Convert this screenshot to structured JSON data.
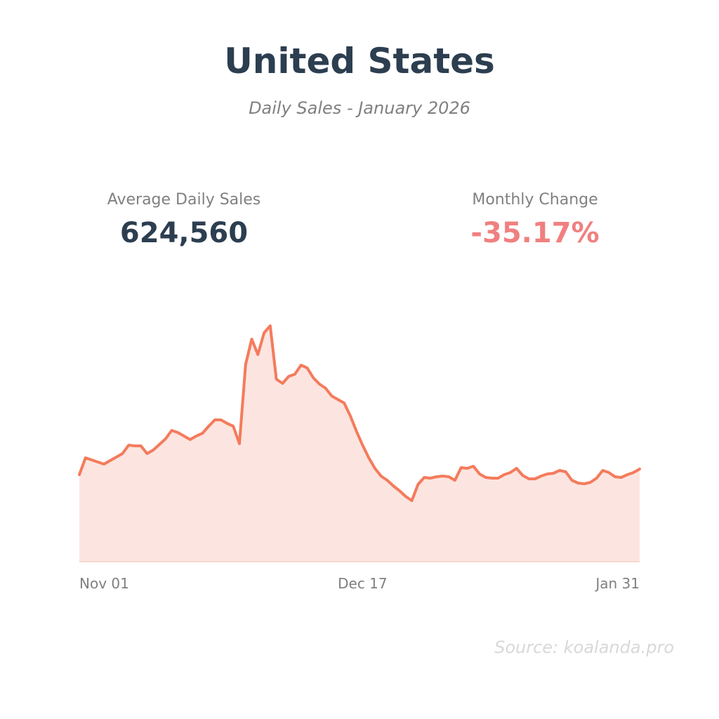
{
  "header": {
    "title": "United States",
    "subtitle": "Daily Sales - January 2026"
  },
  "stats": {
    "avg_label": "Average Daily Sales",
    "avg_value": "624,560",
    "change_label": "Monthly Change",
    "change_value": "-35.17%"
  },
  "source": "Source: koalanda.pro",
  "colors": {
    "line": "#f47b5c",
    "fill": "#fce5e0",
    "title": "#2c3e50",
    "negative": "#f08080"
  },
  "chart_data": {
    "type": "area",
    "title": "Daily Sales - January 2026",
    "xlabel": "",
    "ylabel": "",
    "x_tick_labels": [
      "Nov 01",
      "Dec 17",
      "Jan 31"
    ],
    "x_tick_indices": [
      0,
      46,
      91
    ],
    "ylim": [
      0,
      2000
    ],
    "value_units": "thousands (approximate, no y-axis shown)",
    "grid": false,
    "values": [
      620,
      740,
      725,
      710,
      695,
      720,
      745,
      770,
      830,
      825,
      825,
      770,
      795,
      835,
      875,
      935,
      920,
      895,
      870,
      895,
      915,
      965,
      1010,
      1010,
      985,
      965,
      840,
      1405,
      1585,
      1475,
      1630,
      1680,
      1300,
      1270,
      1320,
      1335,
      1400,
      1380,
      1310,
      1265,
      1235,
      1180,
      1155,
      1130,
      1040,
      930,
      830,
      740,
      665,
      610,
      580,
      540,
      505,
      465,
      435,
      550,
      600,
      595,
      605,
      610,
      605,
      580,
      670,
      665,
      680,
      625,
      600,
      595,
      595,
      620,
      635,
      665,
      615,
      590,
      590,
      610,
      625,
      630,
      650,
      640,
      580,
      560,
      555,
      565,
      595,
      650,
      635,
      605,
      600,
      620,
      635,
      660
    ]
  }
}
